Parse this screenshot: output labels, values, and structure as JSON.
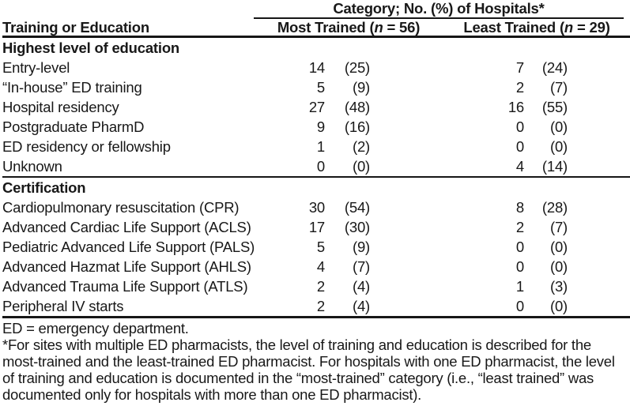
{
  "table": {
    "spanner_header": "Category; No. (%) of Hospitals*",
    "stub_header": "Training or Education",
    "columns": {
      "most": {
        "prefix": "Most Trained (",
        "n": "n",
        "suffix": " = 56)"
      },
      "least": {
        "prefix": "Least Trained (",
        "n": "n",
        "suffix": " = 29)"
      }
    },
    "sections": [
      {
        "title": "Highest level of education",
        "rows": [
          {
            "label": "Entry-level",
            "most_n": "14",
            "most_pct": "(25)",
            "least_n": "7",
            "least_pct": "(24)"
          },
          {
            "label": "“In-house” ED training",
            "most_n": "5",
            "most_pct": "(9)",
            "least_n": "2",
            "least_pct": "(7)"
          },
          {
            "label": "Hospital residency",
            "most_n": "27",
            "most_pct": "(48)",
            "least_n": "16",
            "least_pct": "(55)"
          },
          {
            "label": "Postgraduate PharmD",
            "most_n": "9",
            "most_pct": "(16)",
            "least_n": "0",
            "least_pct": "(0)"
          },
          {
            "label": "ED residency or fellowship",
            "most_n": "1",
            "most_pct": "(2)",
            "least_n": "0",
            "least_pct": "(0)"
          },
          {
            "label": "Unknown",
            "most_n": "0",
            "most_pct": "(0)",
            "least_n": "4",
            "least_pct": "(14)"
          }
        ]
      },
      {
        "title": "Certification",
        "rows": [
          {
            "label": "Cardiopulmonary resuscitation (CPR)",
            "most_n": "30",
            "most_pct": "(54)",
            "least_n": "8",
            "least_pct": "(28)"
          },
          {
            "label": "Advanced Cardiac Life Support (ACLS)",
            "most_n": "17",
            "most_pct": "(30)",
            "least_n": "2",
            "least_pct": "(7)"
          },
          {
            "label": "Pediatric Advanced Life Support (PALS)",
            "most_n": "5",
            "most_pct": "(9)",
            "least_n": "0",
            "least_pct": "(0)"
          },
          {
            "label": "Advanced Hazmat Life Support (AHLS)",
            "most_n": "4",
            "most_pct": "(7)",
            "least_n": "0",
            "least_pct": "(0)"
          },
          {
            "label": "Advanced Trauma Life Support (ATLS)",
            "most_n": "2",
            "most_pct": "(4)",
            "least_n": "1",
            "least_pct": "(3)"
          },
          {
            "label": "Peripheral IV starts",
            "most_n": "2",
            "most_pct": "(4)",
            "least_n": "0",
            "least_pct": "(0)"
          }
        ]
      }
    ]
  },
  "footnotes": {
    "abbreviation": "ED = emergency department.",
    "asterisk_note": "*For sites with multiple ED pharmacists, the level of training and education is described for the most-trained and the least-trained ED pharmacist. For hospitals with one ED pharmacist, the level of training and education is documented in the “most-trained” category (i.e., “least trained” was documented only for hospitals with more than one ED pharmacist)."
  },
  "colors": {
    "text": "#181818",
    "rule": "#161616",
    "background": "#ffffff"
  }
}
